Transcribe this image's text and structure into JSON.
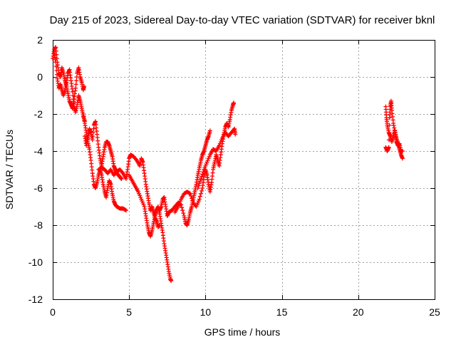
{
  "chart_data": {
    "type": "scatter",
    "title": "Day 215 of 2023, Sidereal Day-to-day VTEC variation (SDTVAR) for receiver bknl",
    "xlabel": "GPS time / hours",
    "ylabel": "SDTVAR / TECUs",
    "xlim": [
      0,
      25
    ],
    "ylim": [
      -12,
      2
    ],
    "xticks": [
      0,
      5,
      10,
      15,
      20,
      25
    ],
    "yticks": [
      2,
      0,
      -2,
      -4,
      -6,
      -8,
      -10,
      -12
    ],
    "grid": true,
    "marker": "+",
    "series": [
      {
        "name": "SDTVAR",
        "color": "#ff0000",
        "segments": [
          [
            [
              0.0,
              1.0
            ],
            [
              0.1,
              1.5
            ],
            [
              0.2,
              1.6
            ],
            [
              0.3,
              0.8
            ],
            [
              0.4,
              0.2
            ],
            [
              0.5,
              0.0
            ],
            [
              0.6,
              0.5
            ],
            [
              0.7,
              0.2
            ],
            [
              0.8,
              -0.2
            ],
            [
              0.9,
              -0.5
            ],
            [
              1.0,
              -0.9
            ],
            [
              1.1,
              -1.3
            ],
            [
              1.2,
              -1.5
            ],
            [
              1.3,
              -1.7
            ],
            [
              1.4,
              -1.2
            ],
            [
              1.5,
              -0.6
            ],
            [
              1.6,
              0.2
            ],
            [
              1.7,
              0.5
            ],
            [
              1.8,
              0.0
            ],
            [
              1.9,
              -0.3
            ],
            [
              2.0,
              -0.7
            ],
            [
              2.05,
              -0.5
            ]
          ],
          [
            [
              0.1,
              1.3
            ],
            [
              0.2,
              0.8
            ],
            [
              0.3,
              -0.1
            ],
            [
              0.4,
              -0.6
            ],
            [
              0.5,
              -0.4
            ],
            [
              0.6,
              -0.7
            ],
            [
              0.7,
              -1.0
            ],
            [
              0.8,
              -0.7
            ],
            [
              0.9,
              -0.3
            ],
            [
              1.0,
              0.2
            ],
            [
              1.1,
              0.4
            ],
            [
              1.2,
              -0.2
            ],
            [
              1.3,
              -0.8
            ],
            [
              1.4,
              -1.6
            ],
            [
              1.5,
              -1.9
            ],
            [
              1.6,
              -1.5
            ],
            [
              1.7,
              -1.0
            ],
            [
              1.8,
              -1.3
            ],
            [
              1.9,
              -1.7
            ],
            [
              2.0,
              -2.1
            ],
            [
              2.1,
              -2.4
            ]
          ],
          [
            [
              2.0,
              -2.0
            ],
            [
              2.1,
              -2.5
            ],
            [
              2.2,
              -3.0
            ],
            [
              2.3,
              -3.5
            ],
            [
              2.4,
              -3.9
            ],
            [
              2.5,
              -4.5
            ],
            [
              2.6,
              -5.2
            ],
            [
              2.7,
              -5.8
            ],
            [
              2.8,
              -6.0
            ],
            [
              2.9,
              -5.7
            ],
            [
              3.0,
              -5.3
            ],
            [
              3.1,
              -5.0
            ],
            [
              3.2,
              -5.3
            ],
            [
              3.3,
              -5.8
            ],
            [
              3.4,
              -6.2
            ],
            [
              3.5,
              -6.5
            ],
            [
              3.6,
              -6.0
            ],
            [
              3.7,
              -5.6
            ],
            [
              3.8,
              -5.8
            ],
            [
              3.9,
              -6.3
            ],
            [
              4.0,
              -6.7
            ],
            [
              4.1,
              -6.9
            ],
            [
              4.2,
              -7.0
            ],
            [
              4.4,
              -7.1
            ],
            [
              4.6,
              -7.1
            ],
            [
              4.8,
              -7.2
            ]
          ],
          [
            [
              2.1,
              -3.2
            ],
            [
              2.2,
              -3.7
            ],
            [
              2.3,
              -3.3
            ],
            [
              2.4,
              -2.8
            ],
            [
              2.5,
              -3.0
            ],
            [
              2.6,
              -3.4
            ],
            [
              2.7,
              -2.6
            ],
            [
              2.8,
              -2.4
            ],
            [
              2.9,
              -3.1
            ],
            [
              3.0,
              -3.8
            ],
            [
              3.1,
              -4.4
            ],
            [
              3.2,
              -4.8
            ],
            [
              3.3,
              -4.3
            ],
            [
              3.4,
              -3.8
            ],
            [
              3.5,
              -3.5
            ],
            [
              3.6,
              -3.5
            ],
            [
              3.7,
              -3.7
            ],
            [
              3.8,
              -4.0
            ],
            [
              3.9,
              -4.3
            ],
            [
              4.0,
              -4.8
            ],
            [
              4.1,
              -5.0
            ],
            [
              4.2,
              -5.2
            ],
            [
              4.3,
              -5.3
            ],
            [
              4.4,
              -5.4
            ],
            [
              4.5,
              -5.5
            ]
          ],
          [
            [
              3.0,
              -5.0
            ],
            [
              3.2,
              -4.9
            ],
            [
              3.4,
              -5.0
            ],
            [
              3.6,
              -5.2
            ],
            [
              3.8,
              -5.0
            ],
            [
              4.0,
              -5.3
            ],
            [
              4.2,
              -5.1
            ],
            [
              4.4,
              -5.0
            ],
            [
              4.6,
              -5.2
            ],
            [
              4.8,
              -5.5
            ],
            [
              4.9,
              -5.0
            ],
            [
              5.0,
              -4.4
            ],
            [
              5.1,
              -4.2
            ],
            [
              5.3,
              -4.3
            ],
            [
              5.5,
              -4.5
            ],
            [
              5.7,
              -4.8
            ],
            [
              5.8,
              -4.4
            ],
            [
              5.9,
              -4.6
            ],
            [
              6.0,
              -5.2
            ],
            [
              6.1,
              -5.8
            ],
            [
              6.2,
              -6.3
            ],
            [
              6.3,
              -6.8
            ],
            [
              6.4,
              -7.2
            ],
            [
              6.5,
              -7.0
            ],
            [
              6.6,
              -7.3
            ],
            [
              6.7,
              -7.6
            ],
            [
              6.8,
              -7.8
            ],
            [
              6.9,
              -8.1
            ],
            [
              7.0,
              -8.0
            ]
          ],
          [
            [
              5.0,
              -5.3
            ],
            [
              5.2,
              -5.6
            ],
            [
              5.4,
              -5.9
            ],
            [
              5.6,
              -6.2
            ],
            [
              5.8,
              -6.6
            ],
            [
              6.0,
              -7.0
            ],
            [
              6.1,
              -7.5
            ],
            [
              6.2,
              -8.0
            ],
            [
              6.3,
              -8.4
            ],
            [
              6.4,
              -8.6
            ],
            [
              6.5,
              -8.3
            ],
            [
              6.6,
              -7.9
            ],
            [
              6.7,
              -7.5
            ],
            [
              6.8,
              -7.2
            ],
            [
              6.9,
              -7.0
            ],
            [
              7.0,
              -7.4
            ],
            [
              7.1,
              -7.9
            ],
            [
              7.2,
              -8.4
            ],
            [
              7.3,
              -9.0
            ],
            [
              7.4,
              -9.5
            ],
            [
              7.5,
              -10.0
            ],
            [
              7.6,
              -10.5
            ],
            [
              7.7,
              -10.9
            ],
            [
              7.75,
              -11.0
            ]
          ],
          [
            [
              7.0,
              -7.2
            ],
            [
              7.1,
              -7.0
            ],
            [
              7.2,
              -6.6
            ],
            [
              7.3,
              -6.5
            ],
            [
              7.4,
              -7.0
            ],
            [
              7.5,
              -7.5
            ],
            [
              7.6,
              -7.3
            ],
            [
              7.8,
              -7.2
            ],
            [
              8.0,
              -7.0
            ],
            [
              8.2,
              -6.8
            ],
            [
              8.4,
              -6.9
            ],
            [
              8.6,
              -7.5
            ],
            [
              8.7,
              -7.9
            ],
            [
              8.8,
              -8.0
            ],
            [
              8.9,
              -7.7
            ],
            [
              9.0,
              -7.3
            ],
            [
              9.1,
              -7.0
            ],
            [
              9.2,
              -6.6
            ],
            [
              9.3,
              -6.2
            ],
            [
              9.4,
              -5.8
            ],
            [
              9.5,
              -5.3
            ],
            [
              9.6,
              -4.9
            ],
            [
              9.7,
              -4.5
            ],
            [
              9.8,
              -4.2
            ],
            [
              9.9,
              -4.0
            ],
            [
              10.0,
              -3.7
            ],
            [
              10.1,
              -3.4
            ],
            [
              10.2,
              -3.2
            ],
            [
              10.3,
              -2.9
            ]
          ],
          [
            [
              8.0,
              -7.3
            ],
            [
              8.2,
              -7.0
            ],
            [
              8.4,
              -6.6
            ],
            [
              8.6,
              -6.3
            ],
            [
              8.8,
              -6.2
            ],
            [
              9.0,
              -6.3
            ],
            [
              9.2,
              -6.8
            ],
            [
              9.4,
              -7.0
            ],
            [
              9.6,
              -6.6
            ],
            [
              9.8,
              -6.0
            ],
            [
              9.9,
              -5.4
            ],
            [
              10.0,
              -5.0
            ],
            [
              10.1,
              -5.3
            ],
            [
              10.2,
              -5.8
            ],
            [
              10.3,
              -6.2
            ],
            [
              10.4,
              -5.7
            ],
            [
              10.5,
              -5.0
            ],
            [
              10.6,
              -4.6
            ],
            [
              10.7,
              -4.2
            ],
            [
              10.8,
              -4.5
            ],
            [
              10.9,
              -4.8
            ],
            [
              11.0,
              -4.2
            ],
            [
              11.1,
              -3.6
            ],
            [
              11.2,
              -3.1
            ],
            [
              11.3,
              -2.7
            ],
            [
              11.4,
              -2.5
            ],
            [
              11.5,
              -2.7
            ],
            [
              11.6,
              -2.3
            ],
            [
              11.7,
              -1.8
            ],
            [
              11.8,
              -1.5
            ],
            [
              11.85,
              -1.4
            ]
          ],
          [
            [
              9.5,
              -6.0
            ],
            [
              9.7,
              -5.5
            ],
            [
              9.9,
              -5.0
            ],
            [
              10.1,
              -4.6
            ],
            [
              10.3,
              -4.2
            ],
            [
              10.5,
              -3.9
            ],
            [
              10.7,
              -4.0
            ],
            [
              10.9,
              -3.7
            ],
            [
              11.1,
              -3.3
            ],
            [
              11.3,
              -3.0
            ],
            [
              11.5,
              -3.2
            ],
            [
              11.7,
              -3.0
            ],
            [
              11.9,
              -2.8
            ],
            [
              11.95,
              -3.1
            ]
          ],
          [
            [
              21.8,
              -1.6
            ],
            [
              21.85,
              -2.2
            ],
            [
              21.9,
              -2.6
            ],
            [
              22.0,
              -3.0
            ],
            [
              22.1,
              -3.2
            ],
            [
              22.2,
              -3.5
            ],
            [
              22.3,
              -3.2
            ],
            [
              22.4,
              -2.9
            ],
            [
              22.5,
              -3.3
            ],
            [
              22.6,
              -3.6
            ],
            [
              22.7,
              -3.9
            ],
            [
              22.8,
              -4.2
            ],
            [
              22.9,
              -4.4
            ]
          ],
          [
            [
              21.8,
              -3.8
            ],
            [
              21.9,
              -4.0
            ],
            [
              22.0,
              -3.8
            ],
            [
              22.05,
              -2.2
            ],
            [
              22.1,
              -1.6
            ],
            [
              22.15,
              -1.3
            ],
            [
              22.2,
              -1.8
            ],
            [
              22.3,
              -2.5
            ],
            [
              22.4,
              -3.0
            ],
            [
              22.5,
              -3.5
            ],
            [
              22.6,
              -3.7
            ],
            [
              22.7,
              -3.6
            ],
            [
              22.8,
              -4.0
            ],
            [
              22.9,
              -4.0
            ]
          ]
        ]
      }
    ]
  }
}
